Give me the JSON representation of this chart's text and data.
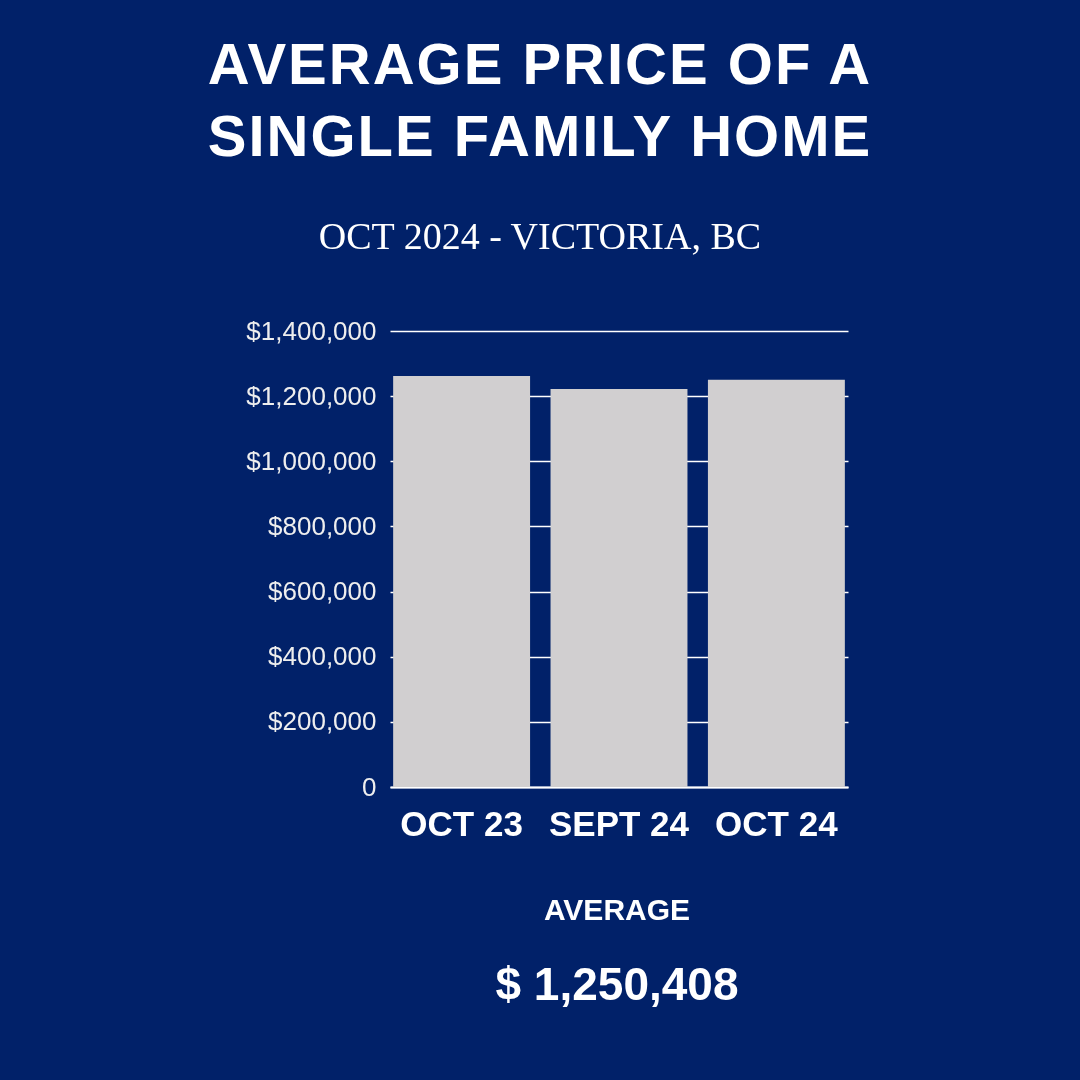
{
  "chart_data": {
    "type": "bar",
    "title": "AVERAGE PRICE OF A SINGLE FAMILY HOME",
    "subtitle": "OCT 2024 - VICTORIA, BC",
    "categories": [
      "OCT 23",
      "SEPT 24",
      "OCT 24"
    ],
    "values": [
      1262000,
      1222000,
      1250000
    ],
    "color": "#d1cfd0",
    "ylim": [
      0,
      1400000
    ],
    "yticks": [
      {
        "value": 0,
        "label": "0"
      },
      {
        "value": 200000,
        "label": "$200,000"
      },
      {
        "value": 400000,
        "label": "$400,000"
      },
      {
        "value": 600000,
        "label": "$600,000"
      },
      {
        "value": 800000,
        "label": "$800,000"
      },
      {
        "value": 1000000,
        "label": "$1,000,000"
      },
      {
        "value": 1200000,
        "label": "$1,200,000"
      },
      {
        "value": 1400000,
        "label": "$1,400,000"
      }
    ],
    "grid": "y",
    "annotations": [
      "AVERAGE",
      "$ 1,250,408"
    ]
  }
}
